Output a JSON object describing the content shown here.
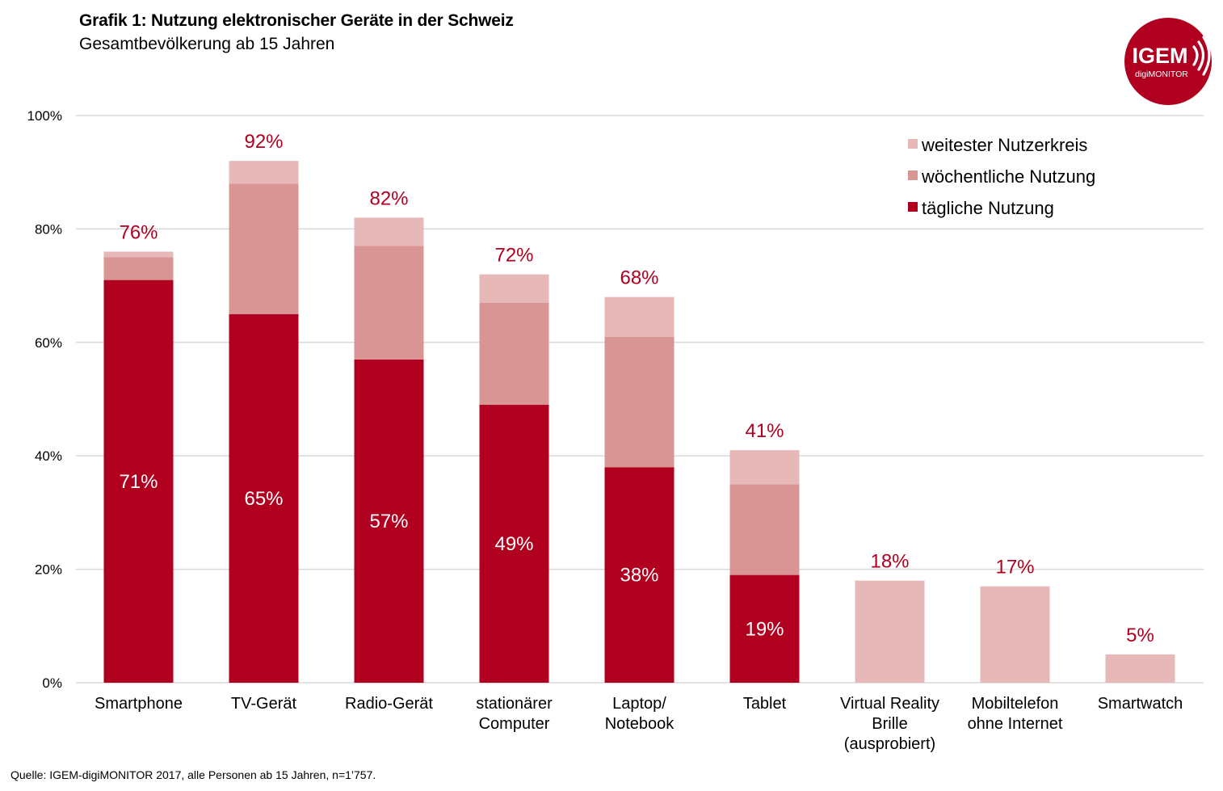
{
  "header": {
    "title": "Grafik 1: Nutzung elektronischer Geräte in der Schweiz",
    "subtitle": "Gesamtbevölkerung ab 15 Jahren"
  },
  "logo": {
    "main_text": "IGEM",
    "sub_text": "digiMONITOR",
    "icon": "broadcast-waves-icon",
    "color": "#B1001F"
  },
  "footer": {
    "source": "Quelle:  IGEM-digiMONITOR  2017, alle Personen ab 15 Jahren, n=1’757."
  },
  "colors": {
    "daily": "#B1001F",
    "weekly": "#D99594",
    "widest": "#E6B8B7",
    "gridline": "#D9D9D9",
    "label_red": "#B1001F"
  },
  "chart_data": {
    "type": "bar",
    "stacked": true,
    "title": "Grafik 1: Nutzung elektronischer Geräte in der Schweiz",
    "subtitle": "Gesamtbevölkerung ab 15 Jahren",
    "xlabel": "",
    "ylabel": "",
    "ylim": [
      0,
      100
    ],
    "yticks": [
      0,
      20,
      40,
      60,
      80,
      100
    ],
    "ytick_labels": [
      "0%",
      "20%",
      "40%",
      "60%",
      "80%",
      "100%"
    ],
    "grid": true,
    "legend_position": "top-right",
    "categories": [
      [
        "Smartphone"
      ],
      [
        "TV-Gerät"
      ],
      [
        "Radio-Gerät"
      ],
      [
        "stationärer",
        "Computer"
      ],
      [
        "Laptop/",
        "Notebook"
      ],
      [
        "Tablet"
      ],
      [
        "Virtual Reality",
        "Brille",
        "(ausprobiert)"
      ],
      [
        "Mobiltelefon",
        "ohne Internet"
      ],
      [
        "Smartwatch"
      ]
    ],
    "series": [
      {
        "name": "tägliche Nutzung",
        "key": "daily",
        "values": [
          71,
          65,
          57,
          49,
          38,
          19,
          0,
          0,
          0
        ]
      },
      {
        "name": "wöchentliche Nutzung",
        "key": "weekly",
        "values": [
          4,
          23,
          20,
          18,
          23,
          16,
          0,
          0,
          0
        ]
      },
      {
        "name": "weitester Nutzerkreis",
        "key": "widest",
        "values": [
          1,
          4,
          5,
          5,
          7,
          6,
          18,
          17,
          5
        ]
      }
    ],
    "totals": [
      76,
      92,
      82,
      72,
      68,
      41,
      18,
      17,
      5
    ],
    "total_labels": [
      "76%",
      "92%",
      "82%",
      "72%",
      "68%",
      "41%",
      "18%",
      "17%",
      "5%"
    ],
    "daily_labels": [
      "71%",
      "65%",
      "57%",
      "49%",
      "38%",
      "19%",
      "",
      "",
      ""
    ],
    "legend": [
      {
        "label": "weitester Nutzerkreis",
        "key": "widest"
      },
      {
        "label": "wöchentliche Nutzung",
        "key": "weekly"
      },
      {
        "label": "tägliche Nutzung",
        "key": "daily"
      }
    ]
  }
}
